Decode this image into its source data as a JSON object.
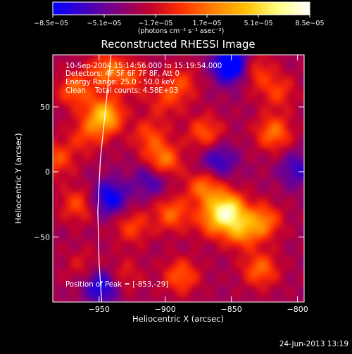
{
  "chart_data": {
    "type": "heatmap",
    "title": "Reconstructed RHESSI Image",
    "xlabel": "Heliocentric X (arcsec)",
    "ylabel": "Heliocentric Y (arcsec)",
    "xlim": [
      -985,
      -795
    ],
    "ylim": [
      -100,
      90
    ],
    "x_ticks": [
      -950,
      -900,
      -850,
      -800
    ],
    "x_tick_labels": [
      "−950",
      "−900",
      "−850",
      "−800"
    ],
    "y_ticks": [
      -50,
      0,
      50
    ],
    "y_tick_labels": [
      "−50",
      "0",
      "50"
    ],
    "colorbar": {
      "range": [
        -8.5e-05,
        8.5e-05
      ],
      "ticks": [
        -8.5e-05,
        -5.1e-05,
        -1.7e-05,
        1.7e-05,
        5.1e-05,
        8.5e-05
      ],
      "tick_labels": [
        "−8.5e−05",
        "−5.1e−05",
        "−1.7e−05",
        "1.7e−05",
        "5.1e−05",
        "8.5e−05"
      ],
      "units_label": "(photons cm⁻² s⁻¹ asec⁻²)",
      "colormap": [
        "#0000ff",
        "#4000c0",
        "#800080",
        "#c00030",
        "#ff3000",
        "#ff8000",
        "#ffc000",
        "#ffff80",
        "#ffffff"
      ]
    },
    "annotations": [
      "10-Sep-2004 15:14:56.000 to 15:19:54.000",
      "Detectors: 4F 5F 6F 7F 8F, Att 0",
      "Energy Range: 25.0 - 50.0 keV",
      "Clean    Total counts: 4.58E+03"
    ],
    "peak_label": "Position of Peak = [-853,-29]",
    "limb_points": [
      [
        -941,
        90
      ],
      [
        -945,
        50
      ],
      [
        -949,
        10
      ],
      [
        -951,
        -30
      ],
      [
        -950,
        -70
      ],
      [
        -948,
        -100
      ]
    ],
    "background_value": -3e-05,
    "sources": [
      {
        "x": -968,
        "y": 63,
        "value": 4.2e-05
      },
      {
        "x": -946,
        "y": 43,
        "value": 7.5e-05
      },
      {
        "x": -960,
        "y": 28,
        "value": 2.8e-05
      },
      {
        "x": -944,
        "y": 78,
        "value": 4.5e-05
      },
      {
        "x": -925,
        "y": 72,
        "value": 3e-05
      },
      {
        "x": -900,
        "y": 55,
        "value": 2.5e-05
      },
      {
        "x": -888,
        "y": 68,
        "value": 3e-05
      },
      {
        "x": -870,
        "y": 30,
        "value": 3.8e-05
      },
      {
        "x": -902,
        "y": 8,
        "value": 5.4e-05
      },
      {
        "x": -912,
        "y": 28,
        "value": 3.2e-05
      },
      {
        "x": -895,
        "y": -32,
        "value": 4.2e-05
      },
      {
        "x": -870,
        "y": -12,
        "value": 4.8e-05
      },
      {
        "x": -853,
        "y": -29,
        "value": 8.5e-05
      },
      {
        "x": -865,
        "y": -38,
        "value": 3.6e-05
      },
      {
        "x": -843,
        "y": -45,
        "value": 5.2e-05
      },
      {
        "x": -826,
        "y": -38,
        "value": 4.8e-05
      },
      {
        "x": -818,
        "y": 30,
        "value": 4.6e-05
      },
      {
        "x": -833,
        "y": 78,
        "value": 3.4e-05
      },
      {
        "x": -815,
        "y": 62,
        "value": 3e-05
      },
      {
        "x": -888,
        "y": -80,
        "value": 4e-05
      },
      {
        "x": -828,
        "y": -75,
        "value": 4.3e-05
      },
      {
        "x": -925,
        "y": -42,
        "value": 3.2e-05
      },
      {
        "x": -932,
        "y": -80,
        "value": 2.4e-05
      },
      {
        "x": -962,
        "y": -72,
        "value": 1.8e-05
      },
      {
        "x": -966,
        "y": -25,
        "value": 3.4e-05
      },
      {
        "x": -982,
        "y": 10,
        "value": 3.6e-05
      },
      {
        "x": -850,
        "y": 82,
        "value": -8.3e-05
      },
      {
        "x": -942,
        "y": -20,
        "value": -5.5e-05
      },
      {
        "x": -910,
        "y": -5,
        "value": -3.8e-05
      },
      {
        "x": -948,
        "y": -88,
        "value": -5.2e-05
      },
      {
        "x": -800,
        "y": 2,
        "value": -3.5e-05
      },
      {
        "x": -860,
        "y": 8,
        "value": -4e-05
      }
    ]
  },
  "footer": {
    "date": "24-Jun-2013 13:19"
  }
}
